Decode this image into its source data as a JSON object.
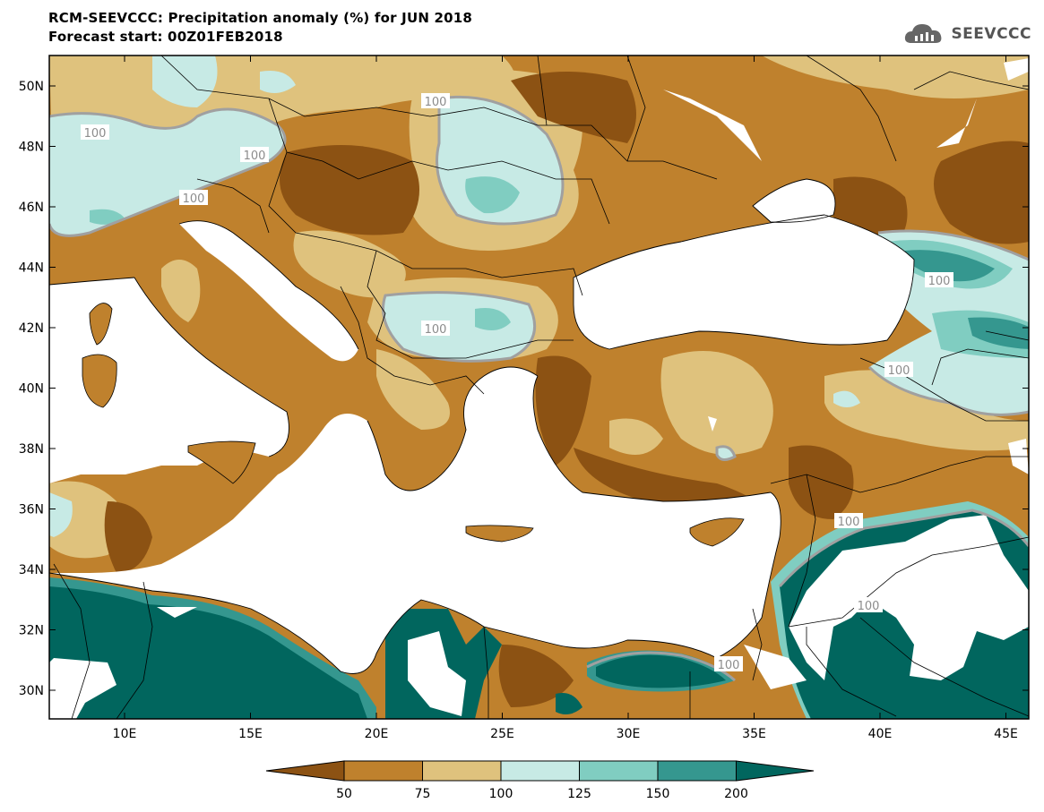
{
  "title": {
    "line1": "RCM-SEEVCCC: Precipitation anomaly (%) for JUN 2018",
    "line2": "Forecast start: 00Z01FEB2018"
  },
  "logo": {
    "text": "SEEVCCC",
    "icon": "cloud-logo-icon"
  },
  "map": {
    "lat_labels": [
      "50N",
      "48N",
      "46N",
      "44N",
      "42N",
      "40N",
      "38N",
      "36N",
      "34N",
      "32N",
      "30N"
    ],
    "lon_labels": [
      "10E",
      "15E",
      "20E",
      "25E",
      "30E",
      "35E",
      "40E",
      "45E"
    ],
    "contour_label": "100"
  },
  "colorbar": {
    "labels": [
      "50",
      "75",
      "100",
      "125",
      "150",
      "200"
    ],
    "colors": [
      "#8c5213",
      "#bf812d",
      "#dfc27d",
      "#c7eae5",
      "#80cdc1",
      "#35978f",
      "#01665e"
    ]
  }
}
